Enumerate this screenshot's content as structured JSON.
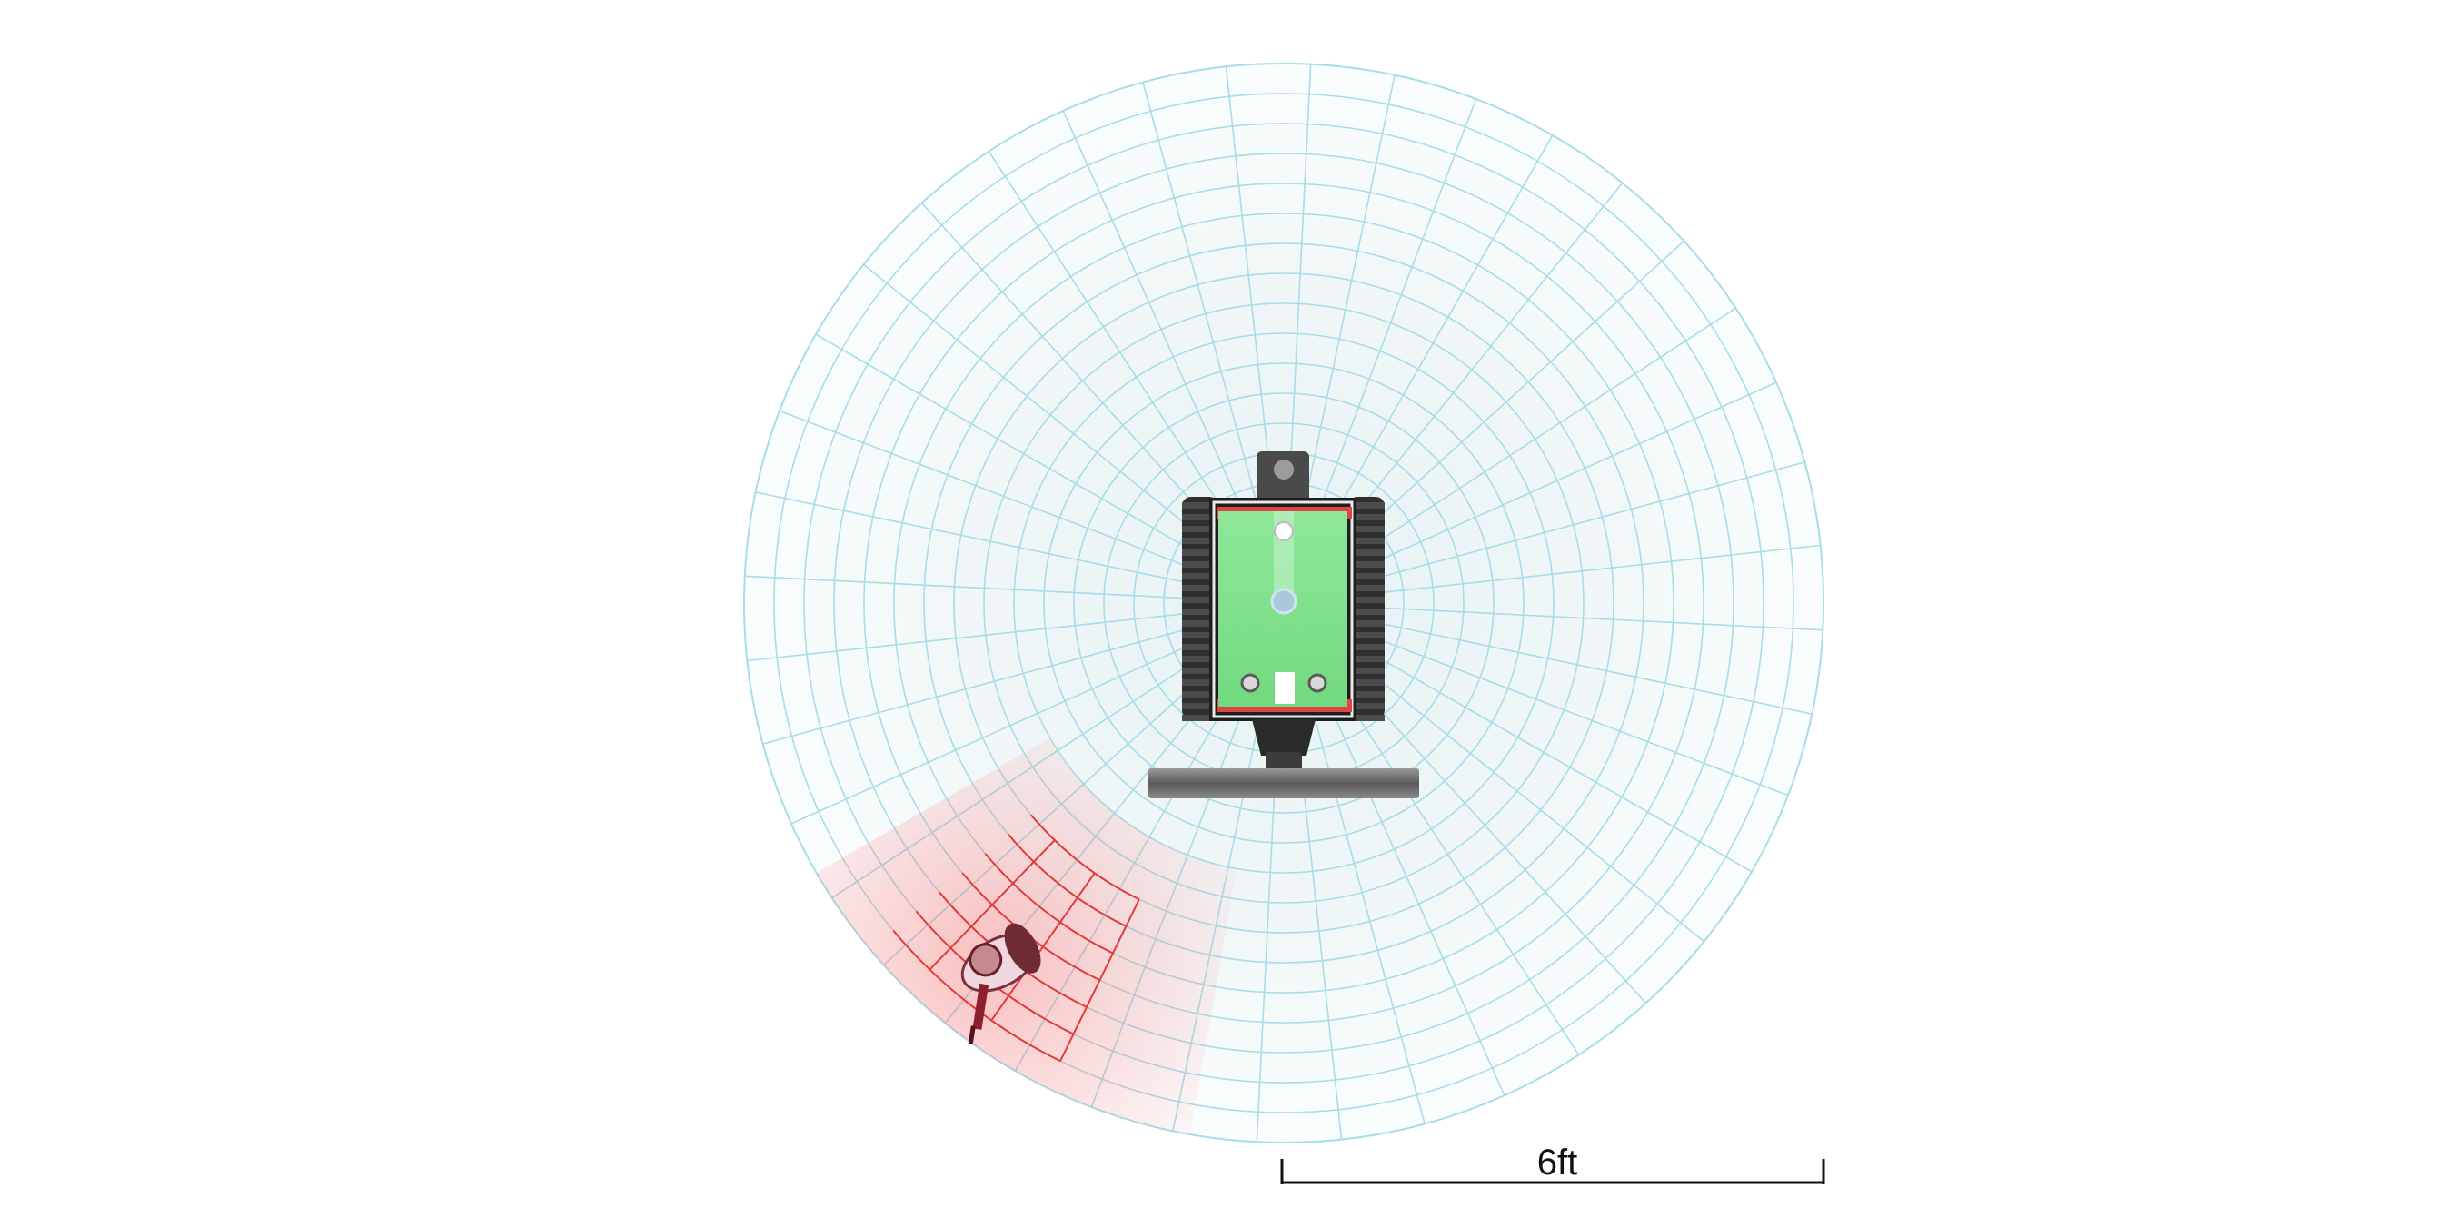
{
  "scale_bar": {
    "label": "6ft"
  },
  "colors": {
    "grid_line": "#a8dce8",
    "grid_fill_center": "#e9f3f4",
    "grid_fill_edge": "#f9fcfd",
    "alert_zone": "#ff5a5a",
    "alert_grid": "#e03030",
    "robot_body": "#7fe08c",
    "robot_track": "#3a3a3a",
    "person": "#9a2a33"
  },
  "icons": {
    "robot": "robot-topdown-icon",
    "person": "person-topdown-icon"
  },
  "diagram": {
    "rings": 18,
    "spokes": 40,
    "highlight_zone": "lower-left"
  }
}
